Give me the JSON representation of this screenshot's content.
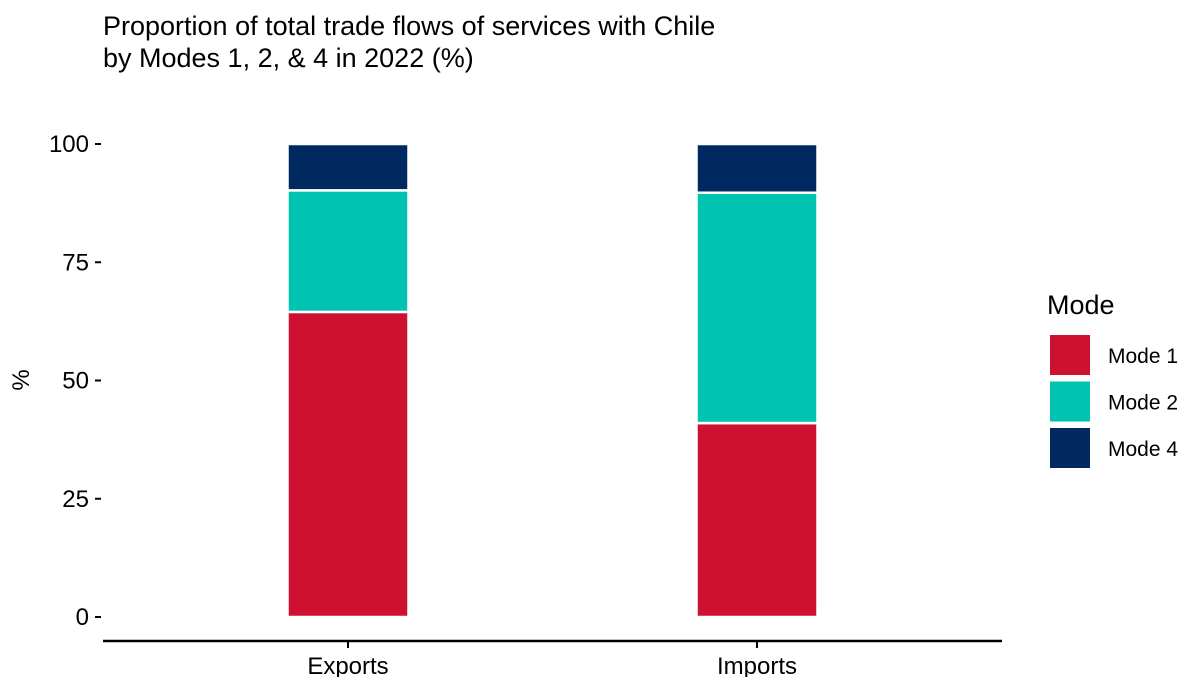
{
  "chart_data": {
    "type": "bar",
    "stacked": true,
    "title": "Proportion of total trade flows of services with Chile\nby Modes 1, 2, & 4 in 2022 (%)",
    "xlabel": "",
    "ylabel": "%",
    "categories": [
      "Exports",
      "Imports"
    ],
    "ylim": [
      0,
      100
    ],
    "yticks": [
      0,
      25,
      50,
      75,
      100
    ],
    "series": [
      {
        "name": "Mode 1",
        "color": "#CE1131",
        "values": [
          64.5,
          41
        ]
      },
      {
        "name": "Mode 2",
        "color": "#00C3B2",
        "values": [
          25.7,
          48.7
        ]
      },
      {
        "name": "Mode 4",
        "color": "#002960",
        "values": [
          9.8,
          10.3
        ]
      }
    ],
    "legend": {
      "title": "Mode",
      "position": "right"
    },
    "grid": false
  }
}
